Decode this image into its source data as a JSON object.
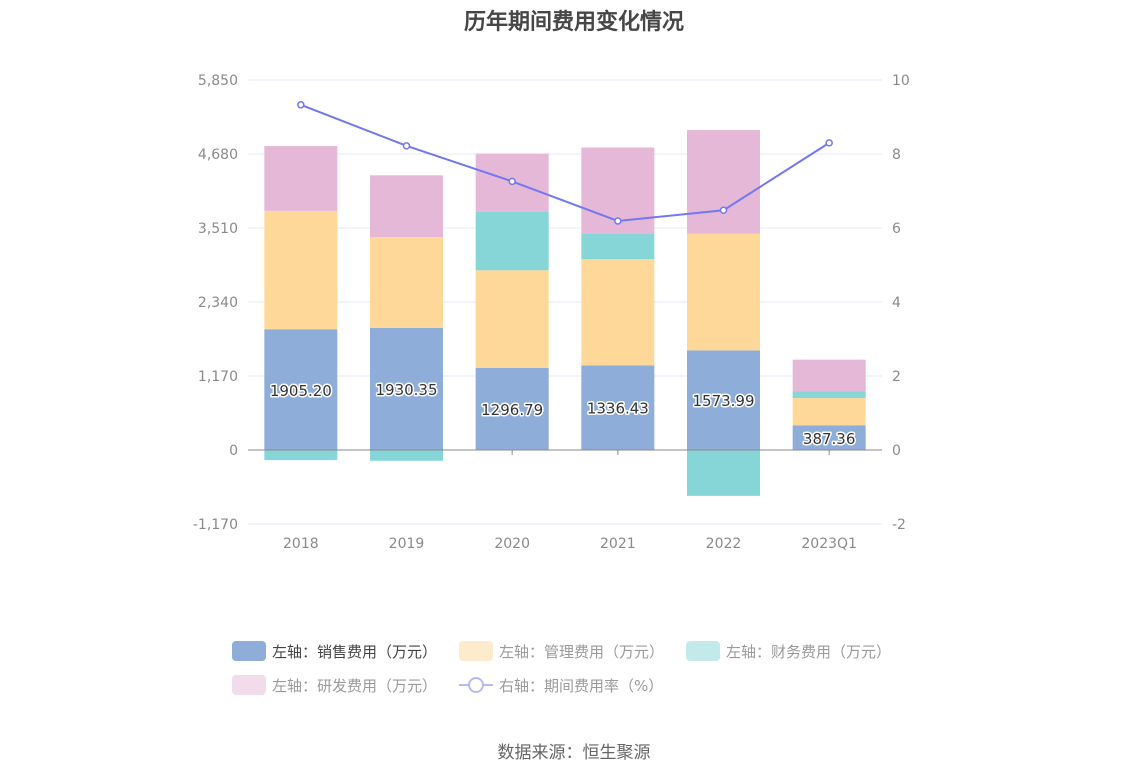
{
  "title": "历年期间费用变化情况",
  "source": "数据来源：恒生聚源",
  "colors": {
    "sales": "#8eadd9",
    "admin": "#fed899",
    "finance": "#86d6d8",
    "rnd": "#e6b8d8",
    "rate": "#7377f0",
    "grid": "#e3e8f5",
    "axis": "#8a8a8a"
  },
  "legend": [
    {
      "label": "左轴：销售费用（万元）",
      "color": "#8eadd9",
      "type": "box",
      "active": true
    },
    {
      "label": "左轴：管理费用（万元）",
      "color": "#feebcc",
      "type": "box",
      "active": false
    },
    {
      "label": "左轴：财务费用（万元）",
      "color": "#c2eaeb",
      "type": "box",
      "active": false
    },
    {
      "label": "左轴：研发费用（万元）",
      "color": "#f2dcec",
      "type": "box",
      "active": false
    },
    {
      "label": "右轴：期间费用率（%）",
      "color": "#b7b9f5",
      "type": "line",
      "active": false
    }
  ],
  "chart_data": {
    "type": "bar",
    "title": "历年期间费用变化情况",
    "categories": [
      "2018",
      "2019",
      "2020",
      "2021",
      "2022",
      "2023Q1"
    ],
    "stacked": true,
    "series": [
      {
        "name": "左轴：销售费用（万元）",
        "axis": "left",
        "type": "bar",
        "values": [
          1905.2,
          1930.35,
          1296.79,
          1336.43,
          1573.99,
          387.36
        ],
        "labels": [
          "1905.20",
          "1930.35",
          "1296.79",
          "1336.43",
          "1573.99",
          "387.36"
        ]
      },
      {
        "name": "左轴：管理费用（万元）",
        "axis": "left",
        "type": "bar",
        "values": [
          1876,
          1435,
          1545,
          1680,
          1845,
          434
        ]
      },
      {
        "name": "左轴：财务费用（万元）",
        "axis": "left",
        "type": "bar",
        "values": [
          -160,
          -170,
          922,
          410,
          -725,
          110
        ]
      },
      {
        "name": "左轴：研发费用（万元）",
        "axis": "left",
        "type": "bar",
        "values": [
          1025,
          978,
          922,
          1356,
          1640,
          497
        ]
      },
      {
        "name": "右轴：期间费用率（%）",
        "axis": "right",
        "type": "line",
        "values": [
          9.33,
          8.22,
          7.26,
          6.19,
          6.48,
          8.3
        ]
      }
    ],
    "left_axis": {
      "min": -1170,
      "max": 5850,
      "ticks": [
        -1170,
        0,
        1170,
        2340,
        3510,
        4680,
        5850
      ],
      "tick_labels": [
        "-1,170",
        "0",
        "1,170",
        "2,340",
        "3,510",
        "4,680",
        "5,850"
      ]
    },
    "right_axis": {
      "min": -2,
      "max": 10,
      "ticks": [
        -2,
        0,
        2,
        4,
        6,
        8,
        10
      ],
      "tick_labels": [
        "-2",
        "0",
        "2",
        "4",
        "6",
        "8",
        "10"
      ]
    },
    "xlabel": "",
    "ylabel": "",
    "grid": true,
    "legend_position": "bottom"
  }
}
